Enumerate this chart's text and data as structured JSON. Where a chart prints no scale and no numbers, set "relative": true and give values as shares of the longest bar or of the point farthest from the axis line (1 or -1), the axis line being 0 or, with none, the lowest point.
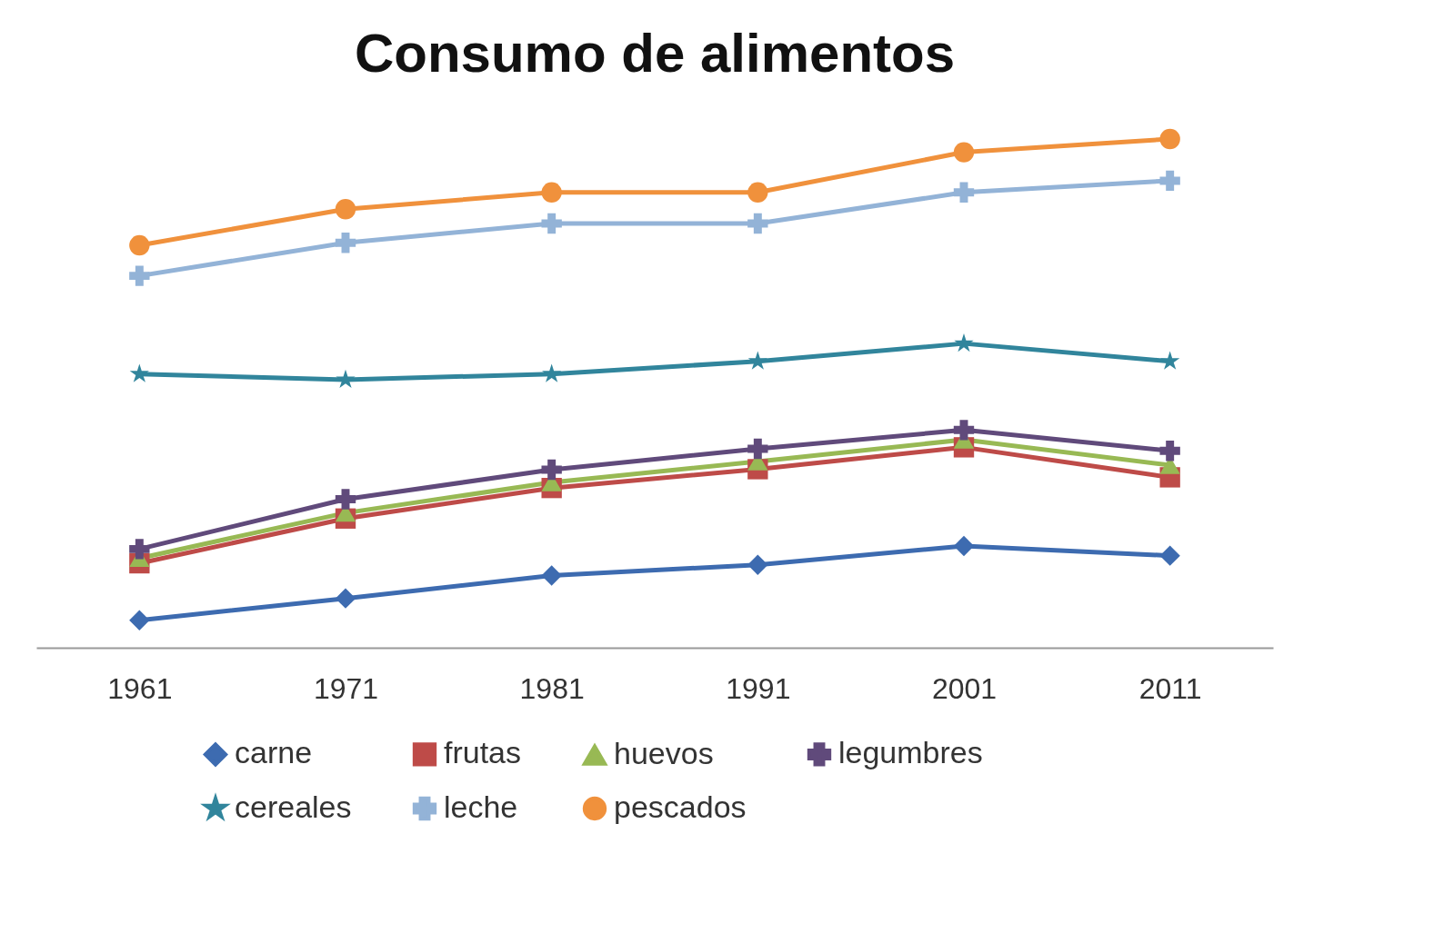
{
  "chart_data": {
    "type": "line",
    "title": "Consumo de alimentos",
    "relative": true,
    "categories": [
      "1961",
      "1971",
      "1981",
      "1991",
      "2001",
      "2011"
    ],
    "series": [
      {
        "name": "carne",
        "color": "#3d6bb0",
        "marker": "diamond",
        "values": [
          0.054,
          0.097,
          0.142,
          0.163,
          0.2,
          0.181
        ]
      },
      {
        "name": "frutas",
        "color": "#be4b48",
        "marker": "square",
        "values": [
          0.166,
          0.254,
          0.314,
          0.351,
          0.394,
          0.335
        ]
      },
      {
        "name": "huevos",
        "color": "#98b954",
        "marker": "triangle",
        "values": [
          0.176,
          0.265,
          0.325,
          0.366,
          0.409,
          0.359
        ]
      },
      {
        "name": "legumbres",
        "color": "#604a7b",
        "marker": "cross",
        "values": [
          0.194,
          0.292,
          0.35,
          0.391,
          0.428,
          0.387
        ]
      },
      {
        "name": "cereales",
        "color": "#31859c",
        "marker": "star",
        "values": [
          0.538,
          0.527,
          0.538,
          0.563,
          0.598,
          0.563
        ]
      },
      {
        "name": "leche",
        "color": "#93b3d7",
        "marker": "cross",
        "values": [
          0.731,
          0.796,
          0.834,
          0.834,
          0.895,
          0.918
        ]
      },
      {
        "name": "pescados",
        "color": "#f0913c",
        "marker": "circle",
        "values": [
          0.791,
          0.862,
          0.895,
          0.895,
          0.974,
          1
        ]
      }
    ],
    "legend": "bottom",
    "grid": false,
    "line_style": "solid"
  }
}
